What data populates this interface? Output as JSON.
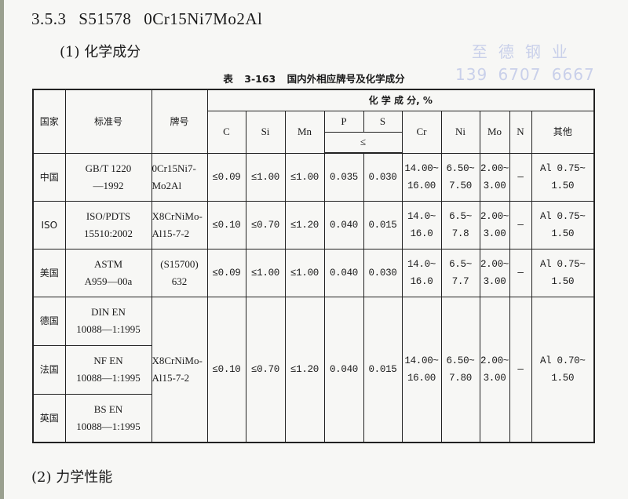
{
  "section": {
    "number": "3.5.3",
    "code": "S51578",
    "grade": "0Cr15Ni7Mo2Al"
  },
  "subsection1": "(1) 化学成分",
  "subsection2": "(2) 力学性能",
  "watermark": {
    "line1": "至德钢业",
    "line2": "139 6707 6667"
  },
  "table": {
    "caption": "表 3-163   国内外相应牌号及化学成分",
    "headers": {
      "country": "国家",
      "standard": "标准号",
      "grade": "牌号",
      "composition": "化 学 成 分, %",
      "C": "C",
      "Si": "Si",
      "Mn": "Mn",
      "P": "P",
      "S": "S",
      "le": "≤",
      "Cr": "Cr",
      "Ni": "Ni",
      "Mo": "Mo",
      "N": "N",
      "other": "其他"
    },
    "rows": [
      {
        "country": "中国",
        "standard": [
          "GB/T 1220",
          "—1992"
        ],
        "grade": [
          "0Cr15Ni7-",
          "Mo2Al"
        ],
        "C": "≤0.09",
        "Si": "≤1.00",
        "Mn": "≤1.00",
        "P": "0.035",
        "S": "0.030",
        "Cr": [
          "14.00~",
          "16.00"
        ],
        "Ni": [
          "6.50~",
          "7.50"
        ],
        "Mo": [
          "2.00~",
          "3.00"
        ],
        "N": "—",
        "other": [
          "Al 0.75~",
          "1.50"
        ]
      },
      {
        "country": "ISO",
        "standard": [
          "ISO/PDTS",
          "15510:2002"
        ],
        "grade": [
          "X8CrNiMo-",
          "Al15-7-2"
        ],
        "C": "≤0.10",
        "Si": "≤0.70",
        "Mn": "≤1.20",
        "P": "0.040",
        "S": "0.015",
        "Cr": [
          "14.0~",
          "16.0"
        ],
        "Ni": [
          "6.5~",
          "7.8"
        ],
        "Mo": [
          "2.00~",
          "3.00"
        ],
        "N": "—",
        "other": [
          "Al 0.75~",
          "1.50"
        ]
      },
      {
        "country": "美国",
        "standard": [
          "ASTM",
          "A959—00a"
        ],
        "grade": [
          "(S15700)",
          "632"
        ],
        "C": "≤0.09",
        "Si": "≤1.00",
        "Mn": "≤1.00",
        "P": "0.040",
        "S": "0.030",
        "Cr": [
          "14.0~",
          "16.0"
        ],
        "Ni": [
          "6.5~",
          "7.7"
        ],
        "Mo": [
          "2.00~",
          "3.00"
        ],
        "N": "—",
        "other": [
          "Al 0.75~",
          "1.50"
        ]
      }
    ],
    "eu_group": {
      "countries": [
        {
          "country": "德国",
          "standard": [
            "DIN EN",
            "10088—1:1995"
          ]
        },
        {
          "country": "法国",
          "standard": [
            "NF EN",
            "10088—1:1995"
          ]
        },
        {
          "country": "英国",
          "standard": [
            "BS EN",
            "10088—1:1995"
          ]
        }
      ],
      "grade": [
        "X8CrNiMo-",
        "Al15-7-2"
      ],
      "C": "≤0.10",
      "Si": "≤0.70",
      "Mn": "≤1.20",
      "P": "0.040",
      "S": "0.015",
      "Cr": [
        "14.00~",
        "16.00"
      ],
      "Ni": [
        "6.50~",
        "7.80"
      ],
      "Mo": [
        "2.00~",
        "3.00"
      ],
      "N": "—",
      "other": [
        "Al 0.70~",
        "1.50"
      ]
    }
  }
}
